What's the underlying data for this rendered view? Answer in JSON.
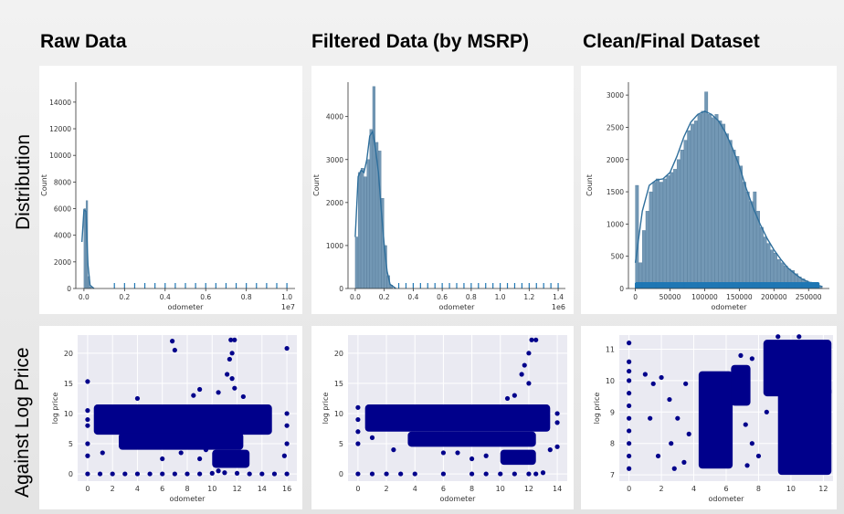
{
  "column_titles": [
    "Raw Data",
    "Filtered Data (by MSRP)",
    "Clean/Final Dataset"
  ],
  "row_labels": [
    "Distribution",
    "Against Log Price"
  ],
  "colors": {
    "hist_fill": "#5b86a8",
    "kde_line": "#2f6f9c",
    "rug": "#1f77b4",
    "scatter": "#00008b",
    "scatter_bg": "#eaeaf2"
  },
  "chart_data": [
    {
      "type": "bar",
      "title": "",
      "xlabel": "odometer",
      "ylabel": "Count",
      "x_offset_label": "1e7",
      "xlim": [
        -0.04,
        1.04
      ],
      "ylim": [
        0,
        15500
      ],
      "xticks": [
        0.0,
        0.2,
        0.4,
        0.6,
        0.8,
        1.0
      ],
      "xtick_labels": [
        "0.0",
        "0.2",
        "0.4",
        "0.6",
        "0.8",
        "1.0"
      ],
      "yticks": [
        0,
        2000,
        4000,
        6000,
        8000,
        10000,
        12000,
        14000
      ],
      "bins": [
        [
          0.0,
          6000
        ],
        [
          0.01,
          6600
        ],
        [
          0.02,
          900
        ],
        [
          0.03,
          120
        ]
      ],
      "kde": [
        [
          -0.01,
          3500
        ],
        [
          0.0,
          5900
        ],
        [
          0.01,
          5800
        ],
        [
          0.02,
          1800
        ],
        [
          0.03,
          250
        ],
        [
          0.05,
          0
        ]
      ],
      "rug": [
        0.15,
        0.2,
        0.25,
        0.3,
        0.35,
        0.4,
        0.45,
        0.5,
        0.55,
        0.6,
        0.65,
        0.7,
        0.75,
        0.8,
        0.85,
        0.9,
        0.95,
        1.0
      ]
    },
    {
      "type": "bar",
      "title": "",
      "xlabel": "odometer",
      "ylabel": "Count",
      "x_offset_label": "1e6",
      "xlim": [
        -0.05,
        1.45
      ],
      "ylim": [
        0,
        4800
      ],
      "xticks": [
        0.0,
        0.2,
        0.4,
        0.6,
        0.8,
        1.0,
        1.2,
        1.4
      ],
      "xtick_labels": [
        "0.0",
        "0.2",
        "0.4",
        "0.6",
        "0.8",
        "1.0",
        "1.2",
        "1.4"
      ],
      "yticks": [
        0,
        1000,
        2000,
        3000,
        4000
      ],
      "bins": [
        [
          0.0,
          1200
        ],
        [
          0.02,
          2700
        ],
        [
          0.04,
          2800
        ],
        [
          0.06,
          2600
        ],
        [
          0.08,
          3000
        ],
        [
          0.1,
          3700
        ],
        [
          0.12,
          4700
        ],
        [
          0.14,
          3400
        ],
        [
          0.16,
          3200
        ],
        [
          0.18,
          2100
        ],
        [
          0.2,
          1000
        ],
        [
          0.22,
          300
        ],
        [
          0.24,
          80
        ]
      ],
      "kde": [
        [
          0.0,
          1200
        ],
        [
          0.02,
          2600
        ],
        [
          0.04,
          2750
        ],
        [
          0.06,
          2700
        ],
        [
          0.08,
          3000
        ],
        [
          0.1,
          3550
        ],
        [
          0.12,
          3650
        ],
        [
          0.14,
          3250
        ],
        [
          0.16,
          2700
        ],
        [
          0.18,
          1800
        ],
        [
          0.2,
          1000
        ],
        [
          0.22,
          400
        ],
        [
          0.24,
          100
        ],
        [
          0.28,
          0
        ]
      ],
      "rug": [
        0.3,
        0.35,
        0.4,
        0.45,
        0.5,
        0.55,
        0.6,
        0.65,
        0.7,
        0.75,
        0.8,
        0.85,
        0.9,
        0.95,
        1.0,
        1.05,
        1.1,
        1.15,
        1.2,
        1.25,
        1.3,
        1.35,
        1.4
      ]
    },
    {
      "type": "bar",
      "title": "",
      "xlabel": "odometer",
      "ylabel": "Count",
      "x_offset_label": "",
      "xlim": [
        -10000,
        280000
      ],
      "ylim": [
        0,
        3200
      ],
      "xticks": [
        0,
        50000,
        100000,
        150000,
        200000,
        250000
      ],
      "xtick_labels": [
        "0",
        "50000",
        "100000",
        "150000",
        "200000",
        "250000"
      ],
      "yticks": [
        0,
        500,
        1000,
        1500,
        2000,
        2500,
        3000
      ],
      "bins": [
        [
          0,
          1600
        ],
        [
          5000,
          400
        ],
        [
          10000,
          900
        ],
        [
          15000,
          1200
        ],
        [
          20000,
          1500
        ],
        [
          25000,
          1650
        ],
        [
          30000,
          1700
        ],
        [
          35000,
          1650
        ],
        [
          40000,
          1700
        ],
        [
          45000,
          1750
        ],
        [
          50000,
          1800
        ],
        [
          55000,
          1850
        ],
        [
          60000,
          2000
        ],
        [
          65000,
          2150
        ],
        [
          70000,
          2300
        ],
        [
          75000,
          2450
        ],
        [
          80000,
          2550
        ],
        [
          85000,
          2600
        ],
        [
          90000,
          2700
        ],
        [
          95000,
          2750
        ],
        [
          100000,
          3050
        ],
        [
          105000,
          2700
        ],
        [
          110000,
          2650
        ],
        [
          115000,
          2700
        ],
        [
          120000,
          2600
        ],
        [
          125000,
          2550
        ],
        [
          130000,
          2400
        ],
        [
          135000,
          2300
        ],
        [
          140000,
          2150
        ],
        [
          145000,
          2050
        ],
        [
          150000,
          1900
        ],
        [
          155000,
          1650
        ],
        [
          160000,
          1500
        ],
        [
          165000,
          1350
        ],
        [
          170000,
          1500
        ],
        [
          175000,
          1200
        ],
        [
          180000,
          950
        ],
        [
          185000,
          800
        ],
        [
          190000,
          700
        ],
        [
          195000,
          600
        ],
        [
          200000,
          550
        ],
        [
          205000,
          450
        ],
        [
          210000,
          400
        ],
        [
          215000,
          350
        ],
        [
          220000,
          300
        ],
        [
          225000,
          280
        ],
        [
          230000,
          230
        ],
        [
          235000,
          180
        ],
        [
          240000,
          150
        ],
        [
          245000,
          120
        ],
        [
          250000,
          100
        ],
        [
          255000,
          80
        ],
        [
          260000,
          60
        ],
        [
          265000,
          40
        ]
      ],
      "kde": [
        [
          0,
          400
        ],
        [
          10000,
          1200
        ],
        [
          20000,
          1600
        ],
        [
          30000,
          1680
        ],
        [
          40000,
          1700
        ],
        [
          50000,
          1800
        ],
        [
          60000,
          2050
        ],
        [
          70000,
          2350
        ],
        [
          80000,
          2580
        ],
        [
          90000,
          2700
        ],
        [
          100000,
          2750
        ],
        [
          110000,
          2700
        ],
        [
          120000,
          2600
        ],
        [
          130000,
          2420
        ],
        [
          140000,
          2180
        ],
        [
          150000,
          1900
        ],
        [
          160000,
          1550
        ],
        [
          170000,
          1250
        ],
        [
          180000,
          1000
        ],
        [
          190000,
          780
        ],
        [
          200000,
          600
        ],
        [
          210000,
          450
        ],
        [
          220000,
          320
        ],
        [
          230000,
          230
        ],
        [
          240000,
          150
        ],
        [
          250000,
          100
        ],
        [
          260000,
          60
        ],
        [
          270000,
          30
        ]
      ],
      "rug": [
        0,
        10000,
        20000,
        30000,
        40000,
        50000,
        60000,
        70000,
        80000,
        90000,
        100000,
        110000,
        120000,
        130000,
        140000,
        150000,
        160000,
        170000,
        180000,
        190000,
        200000,
        210000,
        220000,
        230000,
        240000,
        250000,
        260000,
        265000
      ]
    },
    {
      "type": "scatter",
      "title": "",
      "xlabel": "odometer",
      "ylabel": "log price",
      "xlim": [
        -0.8,
        16.8
      ],
      "ylim": [
        -1.2,
        23
      ],
      "xticks": [
        0,
        2,
        4,
        6,
        8,
        10,
        12,
        14,
        16
      ],
      "yticks": [
        0,
        5,
        10,
        15,
        20
      ],
      "bands": [
        [
          0.5,
          14.8,
          6.5,
          11.5
        ],
        [
          2.5,
          12.5,
          4,
          6.8
        ],
        [
          10,
          13,
          1,
          4
        ]
      ],
      "points": [
        [
          0,
          15.3
        ],
        [
          0,
          10.5
        ],
        [
          0,
          9
        ],
        [
          0,
          8
        ],
        [
          0,
          5
        ],
        [
          0,
          3
        ],
        [
          0,
          0
        ],
        [
          1,
          0
        ],
        [
          2,
          0
        ],
        [
          3,
          0
        ],
        [
          4,
          0
        ],
        [
          5,
          0
        ],
        [
          6,
          0
        ],
        [
          7,
          0
        ],
        [
          8,
          0
        ],
        [
          9,
          0
        ],
        [
          10,
          0.1
        ],
        [
          11,
          0.2
        ],
        [
          12,
          0.1
        ],
        [
          13,
          0
        ],
        [
          14,
          0
        ],
        [
          15,
          0
        ],
        [
          16,
          0
        ],
        [
          6.8,
          22
        ],
        [
          7,
          20.5
        ],
        [
          11.5,
          22.2
        ],
        [
          11.8,
          22.2
        ],
        [
          11.6,
          20
        ],
        [
          11.4,
          19
        ],
        [
          11.2,
          16.5
        ],
        [
          11.6,
          15.8
        ],
        [
          11.8,
          14.2
        ],
        [
          16,
          20.8
        ],
        [
          16,
          10
        ],
        [
          16,
          8
        ],
        [
          16,
          5
        ],
        [
          15.8,
          3
        ],
        [
          6,
          2.5
        ],
        [
          7.5,
          3.5
        ],
        [
          9,
          2.5
        ],
        [
          9.5,
          4
        ],
        [
          10.5,
          0.5
        ],
        [
          8.5,
          13
        ],
        [
          9,
          14
        ],
        [
          10.5,
          13.5
        ],
        [
          12.5,
          12.8
        ],
        [
          4,
          12.5
        ],
        [
          1.2,
          3.5
        ]
      ]
    },
    {
      "type": "scatter",
      "title": "",
      "xlabel": "odometer",
      "ylabel": "log price",
      "xlim": [
        -0.7,
        14.7
      ],
      "ylim": [
        -1.2,
        23
      ],
      "xticks": [
        0,
        2,
        4,
        6,
        8,
        10,
        12,
        14
      ],
      "yticks": [
        0,
        5,
        10,
        15,
        20
      ],
      "bands": [
        [
          0.5,
          13.5,
          7,
          11.5
        ],
        [
          3.5,
          12.5,
          4.5,
          7
        ],
        [
          10,
          12.5,
          1.5,
          4
        ]
      ],
      "points": [
        [
          0,
          11
        ],
        [
          0,
          9
        ],
        [
          0,
          7
        ],
        [
          0,
          5
        ],
        [
          0,
          0
        ],
        [
          1,
          0
        ],
        [
          2,
          0
        ],
        [
          3,
          0
        ],
        [
          4,
          0
        ],
        [
          6,
          0
        ],
        [
          8,
          0
        ],
        [
          9,
          0
        ],
        [
          10,
          0
        ],
        [
          11,
          0
        ],
        [
          12,
          0
        ],
        [
          12.5,
          0
        ],
        [
          13,
          0.2
        ],
        [
          12.5,
          22.2
        ],
        [
          12.2,
          22.2
        ],
        [
          12,
          20
        ],
        [
          11.7,
          18
        ],
        [
          11.5,
          16.5
        ],
        [
          12,
          15
        ],
        [
          11,
          13
        ],
        [
          10.5,
          12.5
        ],
        [
          14,
          10
        ],
        [
          14,
          8.5
        ],
        [
          14,
          4.5
        ],
        [
          13.5,
          4
        ],
        [
          6,
          3.5
        ],
        [
          7,
          3.5
        ],
        [
          8,
          2.5
        ],
        [
          9,
          3
        ],
        [
          2.5,
          4
        ],
        [
          1,
          6
        ]
      ]
    },
    {
      "type": "scatter",
      "title": "",
      "xlabel": "odometer",
      "ylabel": "log price",
      "xlim": [
        -0.6,
        12.6
      ],
      "ylim": [
        6.8,
        11.45
      ],
      "xticks": [
        0,
        2,
        4,
        6,
        8,
        10,
        12
      ],
      "yticks": [
        7,
        8,
        9,
        10,
        11
      ],
      "bands": [
        [
          8.3,
          12.5,
          9.5,
          11.3
        ],
        [
          9.2,
          12.5,
          7,
          9.8
        ],
        [
          4.3,
          6.4,
          7.2,
          10.3
        ],
        [
          6.3,
          7.5,
          9.2,
          10.5
        ]
      ],
      "points": [
        [
          0,
          11.2
        ],
        [
          0,
          10.6
        ],
        [
          0,
          10.3
        ],
        [
          0,
          10
        ],
        [
          0,
          9.6
        ],
        [
          0,
          9.2
        ],
        [
          0,
          8.8
        ],
        [
          0,
          8.4
        ],
        [
          0,
          8
        ],
        [
          0,
          7.6
        ],
        [
          0,
          7.2
        ],
        [
          1,
          10.2
        ],
        [
          1.5,
          9.9
        ],
        [
          2,
          10.1
        ],
        [
          2.5,
          9.4
        ],
        [
          3,
          8.8
        ],
        [
          2.6,
          8
        ],
        [
          3.4,
          7.4
        ],
        [
          3.5,
          9.9
        ],
        [
          3.7,
          8.3
        ],
        [
          1.8,
          7.6
        ],
        [
          2.8,
          7.2
        ],
        [
          1.3,
          8.8
        ],
        [
          6.9,
          10.8
        ],
        [
          6.8,
          9.7
        ],
        [
          7.1,
          10.2
        ],
        [
          7.3,
          7.3
        ],
        [
          7.6,
          8
        ],
        [
          7.6,
          10.7
        ],
        [
          8,
          7.6
        ],
        [
          7.2,
          8.6
        ],
        [
          8.5,
          9
        ],
        [
          9.2,
          11.4
        ],
        [
          10.5,
          11.4
        ]
      ]
    }
  ]
}
